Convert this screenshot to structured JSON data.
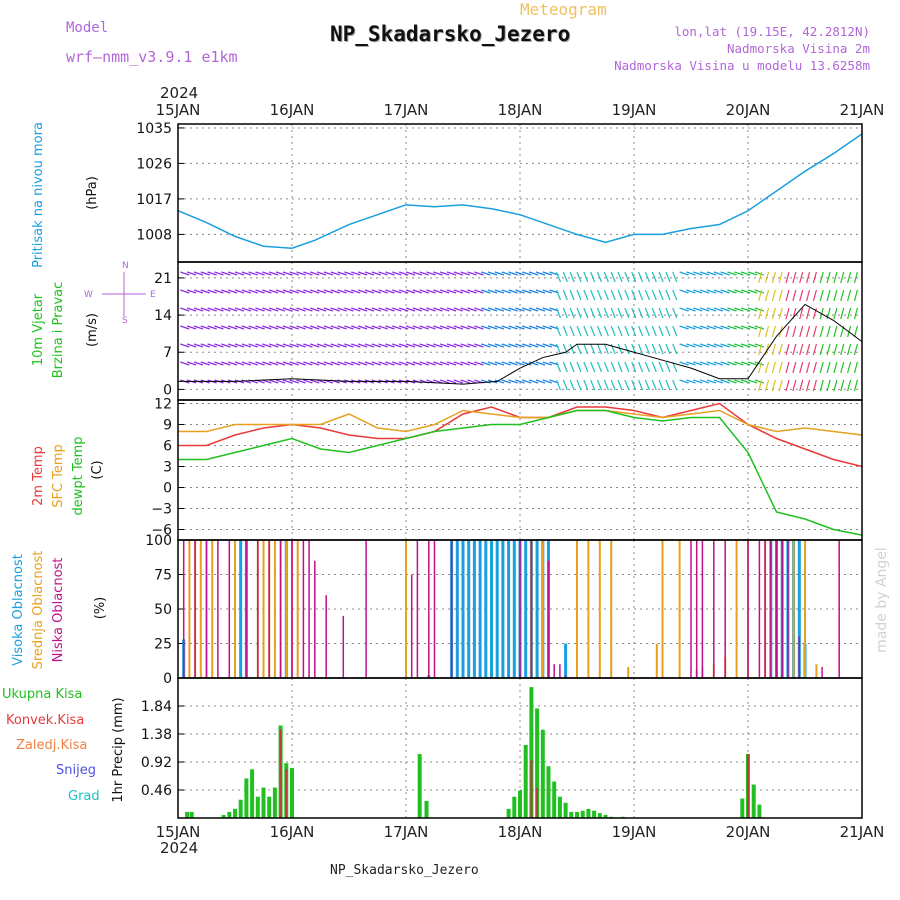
{
  "header": {
    "model_label": "Model",
    "model_name": "wrf–nmm_v3.9.1 e1km",
    "meteogram_title": "Meteogram",
    "station": "NP_Skadarsko_Jezero",
    "lonlat": "lon,lat (19.15E, 42.2812N)",
    "elevation": "Nadmorska Visina 2m",
    "model_elevation": "Nadmorska Visina u modelu 13.6258m"
  },
  "footer": "NP_Skadarsko_Jezero",
  "credit": "made by Angel",
  "time_axis": {
    "year": "2024",
    "ticks": [
      "15JAN",
      "16JAN",
      "17JAN",
      "18JAN",
      "19JAN",
      "20JAN",
      "21JAN"
    ]
  },
  "colors": {
    "pressure": "#1a9fe0",
    "temp": "#e83a3a",
    "sfc_temp": "#e8a020",
    "dewpt": "#20c020",
    "high_cloud": "#1a9fe0",
    "mid_cloud": "#e8a020",
    "low_cloud": "#c0108c",
    "precip": "#20c020",
    "wind_label": "#b266d9"
  },
  "chart_data": [
    {
      "type": "line",
      "title": "Pritisak na nivou mora",
      "ylabel": "(hPa)",
      "yticks": [
        1008,
        1017,
        1026,
        1035
      ],
      "ylim": [
        1001,
        1036
      ],
      "series": [
        {
          "name": "Pritisak na nivou mora",
          "x": [
            0,
            0.25,
            0.5,
            0.75,
            1,
            1.2,
            1.5,
            1.75,
            2,
            2.25,
            2.5,
            2.75,
            3,
            3.25,
            3.5,
            3.75,
            4,
            4.25,
            4.5,
            4.75,
            5,
            5.25,
            5.5,
            5.75,
            6
          ],
          "values": [
            1014,
            1011,
            1007.5,
            1005,
            1004.5,
            1006.5,
            1010.5,
            1013,
            1015.5,
            1015,
            1015.5,
            1014.5,
            1013,
            1010.5,
            1008,
            1006,
            1008,
            1008,
            1009.5,
            1010.5,
            1014,
            1019,
            1024,
            1028.5,
            1033.5
          ]
        }
      ]
    },
    {
      "type": "line",
      "title": "10m Vjetar Brzina i Pravac",
      "ylabel": "(m/s)",
      "yticks": [
        0,
        7,
        14,
        21
      ],
      "ylim": [
        -2,
        24
      ],
      "direction_legend": [
        "N",
        "W",
        "E",
        "S"
      ],
      "series": [
        {
          "name": "10m Vjetar",
          "x": [
            0,
            0.5,
            1,
            1.5,
            2,
            2.5,
            2.8,
            3,
            3.2,
            3.4,
            3.5,
            3.75,
            4,
            4.25,
            4.5,
            4.75,
            5,
            5.25,
            5.5,
            5.75,
            6
          ],
          "values": [
            1.5,
            1.5,
            2,
            1.5,
            1.5,
            1,
            1.5,
            4,
            6,
            7,
            8.5,
            8.5,
            7,
            5.5,
            4,
            2,
            2,
            10,
            16,
            13,
            9
          ]
        }
      ]
    },
    {
      "type": "line",
      "title": "2m Temp / SFC Temp / dewpt Temp",
      "ylabel": "(C)",
      "yticks": [
        -6,
        -3,
        0,
        3,
        6,
        9,
        12
      ],
      "ylim": [
        -7.5,
        12.5
      ],
      "x": [
        0,
        0.25,
        0.5,
        0.75,
        1,
        1.25,
        1.5,
        1.75,
        2,
        2.25,
        2.5,
        2.75,
        3,
        3.25,
        3.5,
        3.75,
        4,
        4.25,
        4.5,
        4.75,
        5,
        5.25,
        5.5,
        5.75,
        6
      ],
      "series": [
        {
          "name": "2m Temp",
          "values": [
            6,
            6,
            7.5,
            8.5,
            9,
            8.5,
            7.5,
            7,
            7,
            8,
            10.5,
            11.5,
            10,
            10,
            11.5,
            11.5,
            11,
            10,
            11,
            12,
            9,
            7,
            5.5,
            4,
            3
          ]
        },
        {
          "name": "SFC Temp",
          "values": [
            8,
            8,
            9,
            9,
            9,
            9,
            10.5,
            8.5,
            8,
            9,
            11,
            10.5,
            10,
            10,
            11,
            11,
            10.5,
            10,
            10.5,
            11,
            9,
            8,
            8.5,
            8,
            7.5
          ]
        },
        {
          "name": "dewpt Temp",
          "values": [
            4,
            4,
            5,
            6,
            7,
            5.5,
            5,
            6,
            7,
            8,
            8.5,
            9,
            9,
            10,
            11,
            11,
            10,
            9.5,
            10,
            10,
            5,
            -3.5,
            -4.5,
            -6,
            -6.8
          ]
        }
      ]
    },
    {
      "type": "bar",
      "title": "Visoka Oblacnost / Srednja Oblacnost / Niska Oblacnost",
      "ylabel": "(%)",
      "yticks": [
        0,
        25,
        50,
        75,
        100
      ],
      "ylim": [
        0,
        100
      ],
      "series": [
        {
          "name": "Visoka Oblacnost",
          "x": [
            0.05,
            0.55,
            0.6,
            0.95,
            2.2,
            2.4,
            2.45,
            2.5,
            2.55,
            2.6,
            2.65,
            2.7,
            2.75,
            2.8,
            2.85,
            2.9,
            2.95,
            3.0,
            3.05,
            3.1,
            3.15,
            3.2,
            3.25,
            3.4,
            5.2,
            5.25,
            5.3,
            5.35,
            5.4,
            5.45,
            5.5
          ],
          "values": [
            28,
            100,
            100,
            100,
            2,
            100,
            100,
            100,
            100,
            100,
            100,
            100,
            100,
            100,
            100,
            100,
            100,
            100,
            100,
            100,
            100,
            100,
            100,
            25,
            100,
            100,
            100,
            100,
            100,
            100,
            25
          ]
        },
        {
          "name": "Srednja Oblacnost",
          "x": [
            0.1,
            0.15,
            0.2,
            0.25,
            0.3,
            0.5,
            0.7,
            0.75,
            0.8,
            0.85,
            0.9,
            0.95,
            1.0,
            1.05,
            2.0,
            3.1,
            3.2,
            3.5,
            3.6,
            3.7,
            3.8,
            3.95,
            4.2,
            4.25,
            4.4,
            4.55,
            4.6,
            4.7,
            4.8,
            4.9,
            5.0,
            5.15,
            5.2,
            5.4,
            5.5,
            5.6
          ],
          "values": [
            100,
            100,
            100,
            100,
            100,
            100,
            100,
            100,
            100,
            100,
            100,
            100,
            100,
            100,
            100,
            100,
            100,
            100,
            100,
            100,
            100,
            8,
            25,
            100,
            100,
            6,
            8,
            10,
            15,
            100,
            100,
            100,
            75,
            100,
            100,
            10
          ]
        },
        {
          "name": "Niska Oblacnost",
          "x": [
            0.05,
            0.15,
            0.25,
            0.35,
            0.45,
            0.6,
            0.7,
            0.8,
            0.9,
            1.0,
            1.1,
            1.15,
            1.2,
            1.3,
            1.45,
            1.65,
            2.05,
            2.1,
            2.2,
            2.25,
            2.4,
            3.0,
            3.1,
            3.25,
            3.3,
            3.35,
            3.4,
            4.5,
            4.55,
            4.6,
            4.7,
            4.8,
            5.0,
            5.1,
            5.15,
            5.2,
            5.25,
            5.3,
            5.35,
            5.45,
            5.65,
            5.8
          ],
          "values": [
            100,
            100,
            100,
            100,
            100,
            100,
            100,
            100,
            100,
            100,
            100,
            100,
            85,
            60,
            45,
            100,
            75,
            100,
            100,
            100,
            100,
            100,
            100,
            85,
            10,
            10,
            2,
            100,
            100,
            100,
            100,
            100,
            100,
            100,
            100,
            100,
            100,
            100,
            100,
            30,
            8,
            100
          ]
        }
      ]
    },
    {
      "type": "bar",
      "title": "1hr Precip",
      "ylabel": "(mm)",
      "legend": [
        "Ukupna Kisa",
        "Konvek.Kisa",
        "Zaledj.Kisa",
        "Snijeg",
        "Grad"
      ],
      "yticks": [
        0.46,
        0.92,
        1.38,
        1.84
      ],
      "ylim": [
        0,
        2.3
      ],
      "series": [
        {
          "name": "Ukupna Kisa",
          "x": [
            0.08,
            0.12,
            0.4,
            0.45,
            0.5,
            0.55,
            0.6,
            0.65,
            0.7,
            0.75,
            0.8,
            0.85,
            0.9,
            0.95,
            1.0,
            2.12,
            2.18,
            2.9,
            2.95,
            3.0,
            3.05,
            3.1,
            3.15,
            3.2,
            3.25,
            3.3,
            3.35,
            3.4,
            3.45,
            3.5,
            3.55,
            3.6,
            3.65,
            3.7,
            3.75,
            3.8,
            3.9,
            4.95,
            5.0,
            5.05,
            5.1
          ],
          "values": [
            0.1,
            0.1,
            0.05,
            0.1,
            0.15,
            0.3,
            0.65,
            0.8,
            0.35,
            0.5,
            0.35,
            0.5,
            1.52,
            0.9,
            0.82,
            1.05,
            0.28,
            0.15,
            0.35,
            0.45,
            1.2,
            2.15,
            1.8,
            1.45,
            0.85,
            0.6,
            0.35,
            0.25,
            0.1,
            0.1,
            0.12,
            0.15,
            0.12,
            0.08,
            0.05,
            0.02,
            0.02,
            0.32,
            1.05,
            0.55,
            0.22
          ]
        },
        {
          "name": "Konvek.Kisa",
          "x": [
            0.9,
            0.95,
            3.1,
            3.15,
            5.0
          ],
          "values": [
            1.45,
            0.8,
            0.95,
            0.5,
            1.05
          ]
        }
      ]
    }
  ]
}
